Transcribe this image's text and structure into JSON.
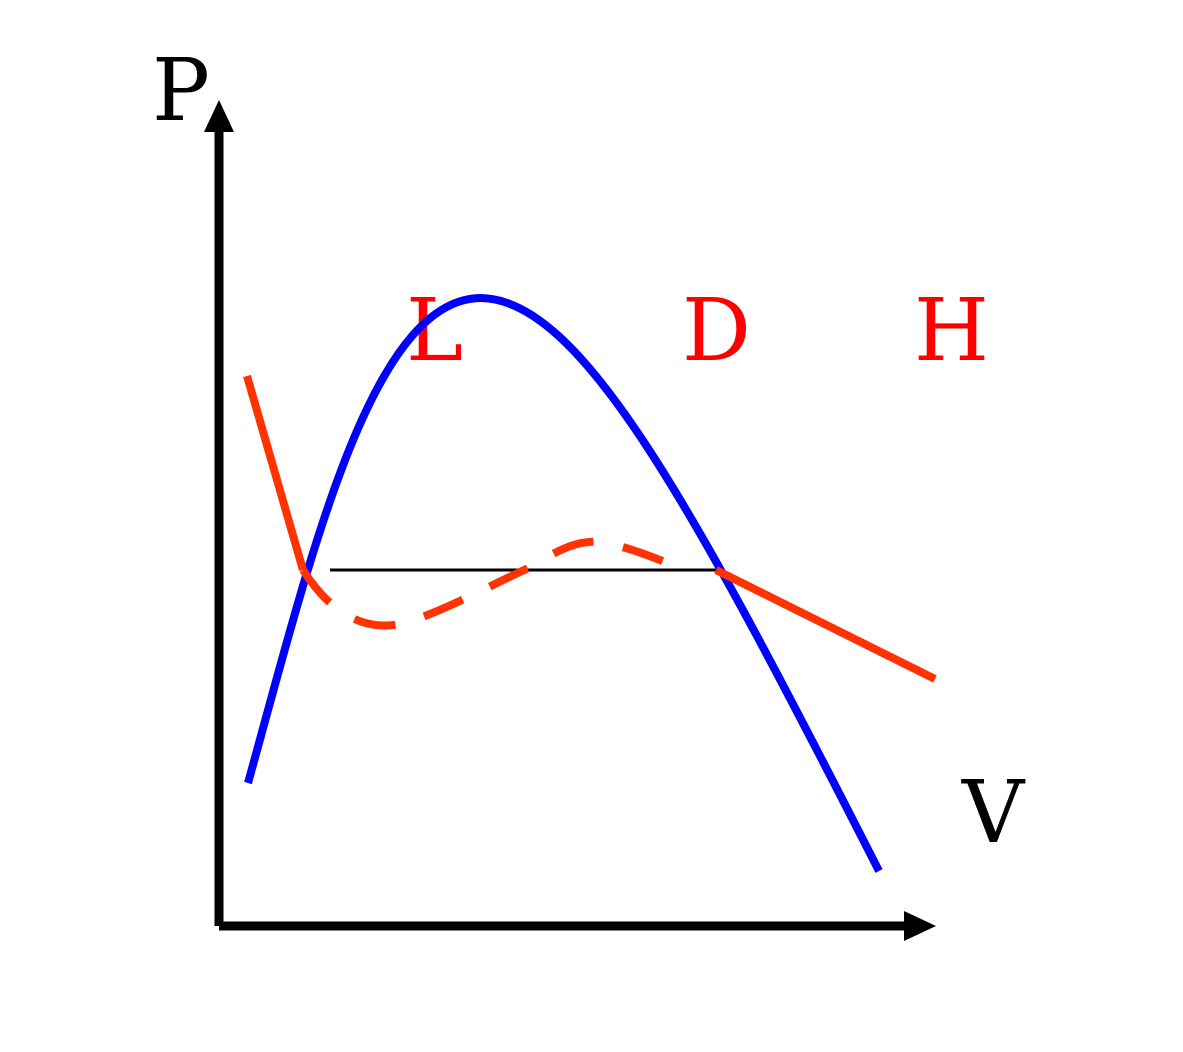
{
  "axes": {
    "y_label": "P",
    "x_label": "V",
    "color": "#000000"
  },
  "regions": [
    {
      "label": "L",
      "color": "#ff0000"
    },
    {
      "label": "D",
      "color": "#ff0000"
    },
    {
      "label": "H",
      "color": "#ff0000"
    }
  ],
  "curves": {
    "coexistence_color": "#0000ff",
    "isotherm_color": "#ff3300",
    "tie_line_color": "#000000"
  }
}
